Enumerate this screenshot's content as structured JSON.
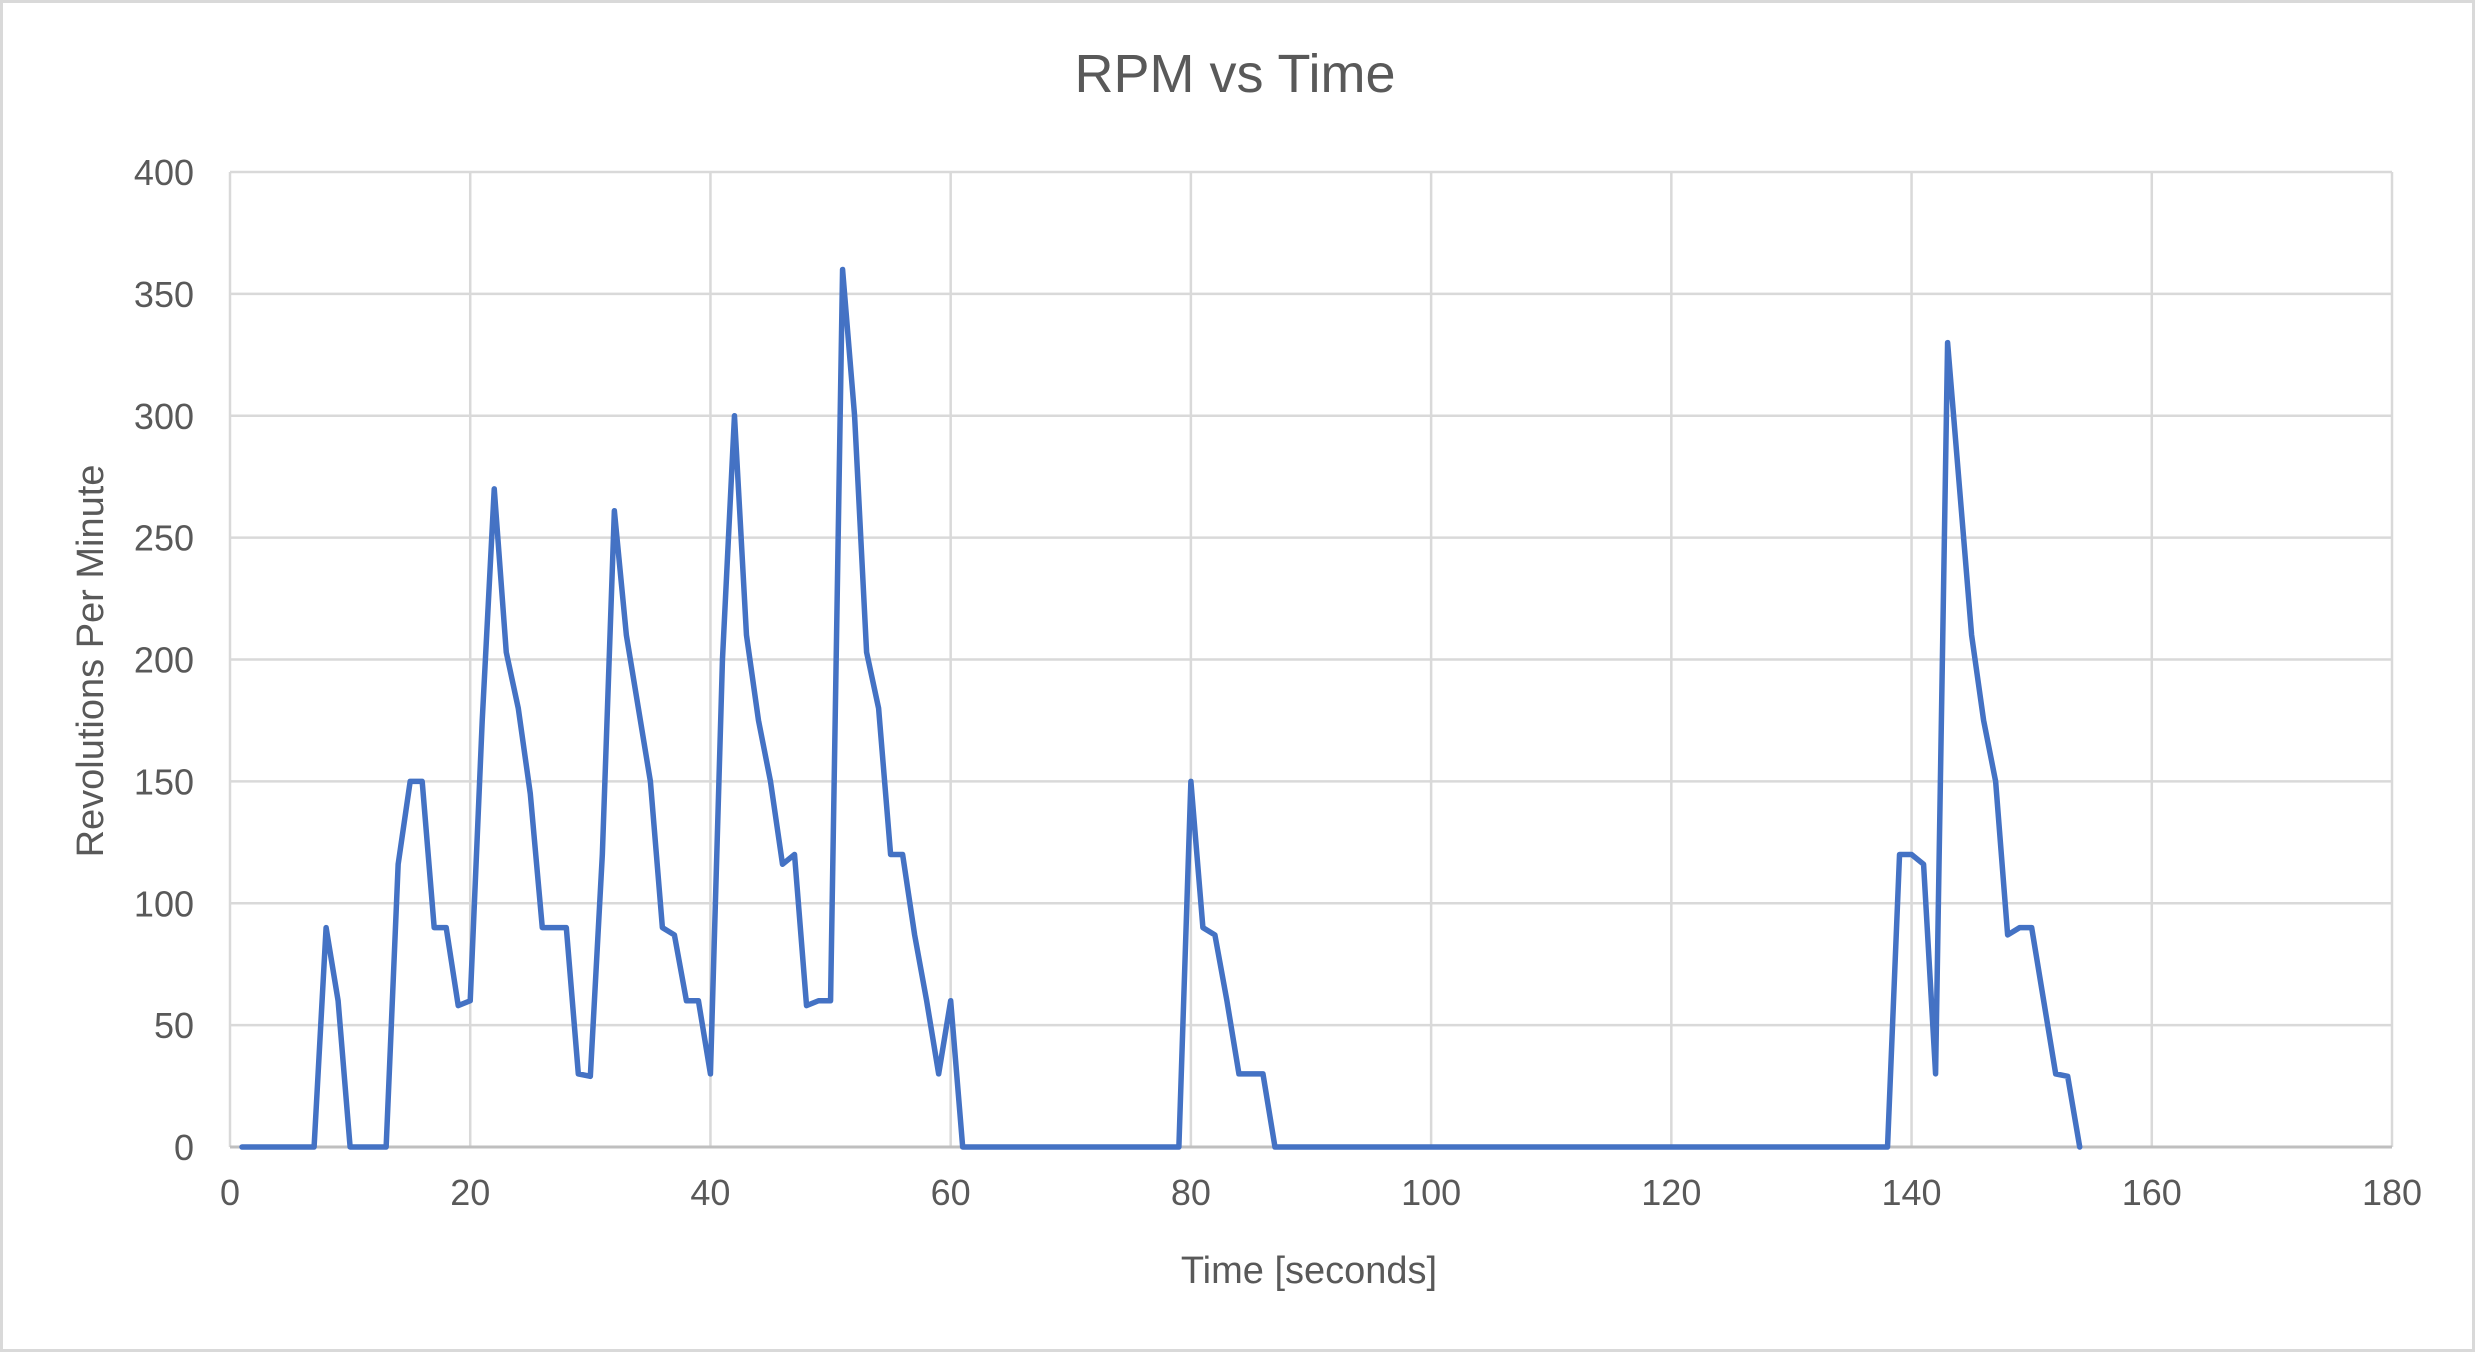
{
  "chart_data": {
    "type": "line",
    "title": "RPM vs Time",
    "xlabel": "Time [seconds]",
    "ylabel": "Revolutions Per Minute",
    "xlim": [
      0,
      180
    ],
    "ylim": [
      0,
      400
    ],
    "x_ticks": [
      0,
      20,
      40,
      60,
      80,
      100,
      120,
      140,
      160,
      180
    ],
    "y_ticks": [
      0,
      50,
      100,
      150,
      200,
      250,
      300,
      350,
      400
    ],
    "grid": true,
    "legend": "none",
    "series": [
      {
        "color": "#4472C4",
        "points": [
          [
            1,
            0
          ],
          [
            2,
            0
          ],
          [
            3,
            0
          ],
          [
            4,
            0
          ],
          [
            5,
            0
          ],
          [
            6,
            0
          ],
          [
            7,
            0
          ],
          [
            8,
            90
          ],
          [
            9,
            60
          ],
          [
            10,
            0
          ],
          [
            11,
            0
          ],
          [
            12,
            0
          ],
          [
            13,
            0
          ],
          [
            14,
            116
          ],
          [
            15,
            150
          ],
          [
            16,
            150
          ],
          [
            17,
            90
          ],
          [
            18,
            90
          ],
          [
            19,
            58
          ],
          [
            20,
            60
          ],
          [
            21,
            175
          ],
          [
            22,
            270
          ],
          [
            23,
            203
          ],
          [
            24,
            180
          ],
          [
            25,
            145
          ],
          [
            26,
            90
          ],
          [
            27,
            90
          ],
          [
            28,
            90
          ],
          [
            29,
            30
          ],
          [
            30,
            29
          ],
          [
            31,
            120
          ],
          [
            32,
            261
          ],
          [
            33,
            210
          ],
          [
            34,
            180
          ],
          [
            35,
            150
          ],
          [
            36,
            90
          ],
          [
            37,
            87
          ],
          [
            38,
            60
          ],
          [
            39,
            60
          ],
          [
            40,
            30
          ],
          [
            41,
            200
          ],
          [
            42,
            300
          ],
          [
            43,
            210
          ],
          [
            44,
            175
          ],
          [
            45,
            150
          ],
          [
            46,
            116
          ],
          [
            47,
            120
          ],
          [
            48,
            58
          ],
          [
            49,
            60
          ],
          [
            50,
            60
          ],
          [
            51,
            360
          ],
          [
            52,
            300
          ],
          [
            53,
            203
          ],
          [
            54,
            180
          ],
          [
            55,
            120
          ],
          [
            56,
            120
          ],
          [
            57,
            87
          ],
          [
            58,
            60
          ],
          [
            59,
            30
          ],
          [
            60,
            60
          ],
          [
            61,
            0
          ],
          [
            62,
            0
          ],
          [
            63,
            0
          ],
          [
            64,
            0
          ],
          [
            65,
            0
          ],
          [
            66,
            0
          ],
          [
            67,
            0
          ],
          [
            68,
            0
          ],
          [
            69,
            0
          ],
          [
            70,
            0
          ],
          [
            71,
            0
          ],
          [
            72,
            0
          ],
          [
            73,
            0
          ],
          [
            74,
            0
          ],
          [
            75,
            0
          ],
          [
            76,
            0
          ],
          [
            77,
            0
          ],
          [
            78,
            0
          ],
          [
            79,
            0
          ],
          [
            80,
            150
          ],
          [
            81,
            90
          ],
          [
            82,
            87
          ],
          [
            83,
            60
          ],
          [
            84,
            30
          ],
          [
            85,
            30
          ],
          [
            86,
            30
          ],
          [
            87,
            0
          ],
          [
            88,
            0
          ],
          [
            89,
            0
          ],
          [
            90,
            0
          ],
          [
            91,
            0
          ],
          [
            92,
            0
          ],
          [
            93,
            0
          ],
          [
            94,
            0
          ],
          [
            95,
            0
          ],
          [
            96,
            0
          ],
          [
            97,
            0
          ],
          [
            98,
            0
          ],
          [
            99,
            0
          ],
          [
            100,
            0
          ],
          [
            101,
            0
          ],
          [
            102,
            0
          ],
          [
            103,
            0
          ],
          [
            104,
            0
          ],
          [
            105,
            0
          ],
          [
            106,
            0
          ],
          [
            107,
            0
          ],
          [
            108,
            0
          ],
          [
            109,
            0
          ],
          [
            110,
            0
          ],
          [
            111,
            0
          ],
          [
            112,
            0
          ],
          [
            113,
            0
          ],
          [
            114,
            0
          ],
          [
            115,
            0
          ],
          [
            116,
            0
          ],
          [
            117,
            0
          ],
          [
            118,
            0
          ],
          [
            119,
            0
          ],
          [
            120,
            0
          ],
          [
            121,
            0
          ],
          [
            122,
            0
          ],
          [
            123,
            0
          ],
          [
            124,
            0
          ],
          [
            125,
            0
          ],
          [
            126,
            0
          ],
          [
            127,
            0
          ],
          [
            128,
            0
          ],
          [
            129,
            0
          ],
          [
            130,
            0
          ],
          [
            131,
            0
          ],
          [
            132,
            0
          ],
          [
            133,
            0
          ],
          [
            134,
            0
          ],
          [
            135,
            0
          ],
          [
            136,
            0
          ],
          [
            137,
            0
          ],
          [
            138,
            0
          ],
          [
            139,
            120
          ],
          [
            140,
            120
          ],
          [
            141,
            116
          ],
          [
            142,
            30
          ],
          [
            143,
            330
          ],
          [
            144,
            270
          ],
          [
            145,
            210
          ],
          [
            146,
            175
          ],
          [
            147,
            150
          ],
          [
            148,
            87
          ],
          [
            149,
            90
          ],
          [
            150,
            90
          ],
          [
            151,
            60
          ],
          [
            152,
            30
          ],
          [
            153,
            29
          ],
          [
            154,
            0
          ]
        ]
      }
    ]
  }
}
